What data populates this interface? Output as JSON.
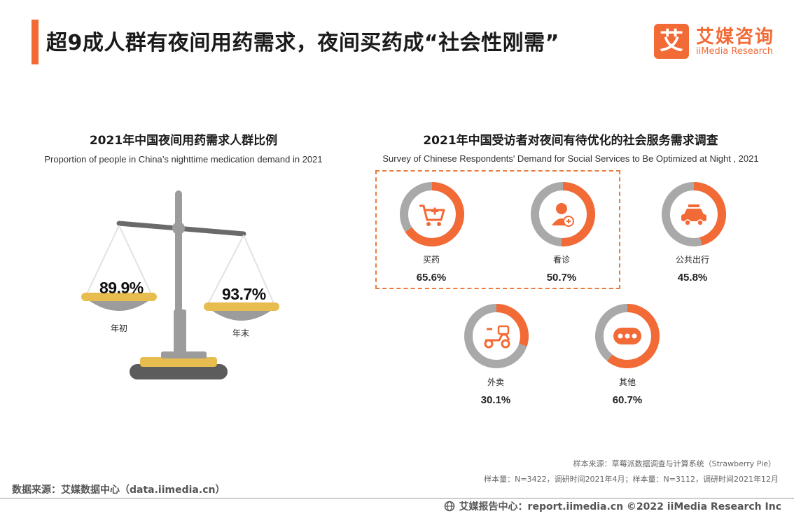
{
  "header": {
    "title": "超9成人群有夜间用药需求，夜间买药成“社会性刚需”",
    "logo_cn": "艾媒咨询",
    "logo_en": "iiMedia Research",
    "logo_mark": "艾"
  },
  "colors": {
    "accent": "#f26a35",
    "donut_track": "#a9a9a9",
    "scale_gold": "#e7bd4f",
    "scale_gray": "#9c9c9c"
  },
  "left_chart": {
    "title": "2021年中国夜间用药需求人群比例",
    "subtitle": "Proportion of people in China’s nighttime medication demand in 2021"
  },
  "right_chart": {
    "title": "2021年中国受访者对夜间有待优化的社会服务需求调查",
    "subtitle": "Survey of Chinese Respondents' Demand for Social Services to Be Optimized at Night , 2021"
  },
  "chart_data": [
    {
      "type": "bar",
      "title": "2021年中国夜间用药需求人群比例",
      "subtitle": "Proportion of people in China’s nighttime medication demand in 2021",
      "categories": [
        "年初",
        "年末"
      ],
      "values": [
        89.9,
        93.7
      ],
      "labels": [
        "89.9%",
        "93.7%"
      ],
      "unit": "%"
    },
    {
      "type": "pie",
      "title": "2021年中国受访者对夜间有待优化的社会服务需求调查",
      "subtitle": "Survey of Chinese Respondents' Demand for Social Services to Be Optimized at Night , 2021",
      "categories": [
        "买药",
        "看诊",
        "公共出行",
        "外卖",
        "其他"
      ],
      "values": [
        65.6,
        50.7,
        45.8,
        30.1,
        60.7
      ],
      "labels": [
        "65.6%",
        "50.7%",
        "45.8%",
        "30.1%",
        "60.7%"
      ],
      "icons": [
        "cart-icon",
        "doctor-icon",
        "car-icon",
        "scooter-icon",
        "more-icon"
      ],
      "highlighted": [
        "买药",
        "看诊"
      ],
      "unit": "%"
    }
  ],
  "notes": {
    "sample_source": "样本来源：草莓派数据调查与计算系统（Strawberry Pie）",
    "sample_size": "样本量：N=3422，调研时间2021年4月；样本量：N=3112，调研时间2021年12月"
  },
  "source": "数据来源：艾媒数据中心（data.iimedia.cn）",
  "footer": "艾媒报告中心：report.iimedia.cn  ©2022  iiMedia Research Inc"
}
